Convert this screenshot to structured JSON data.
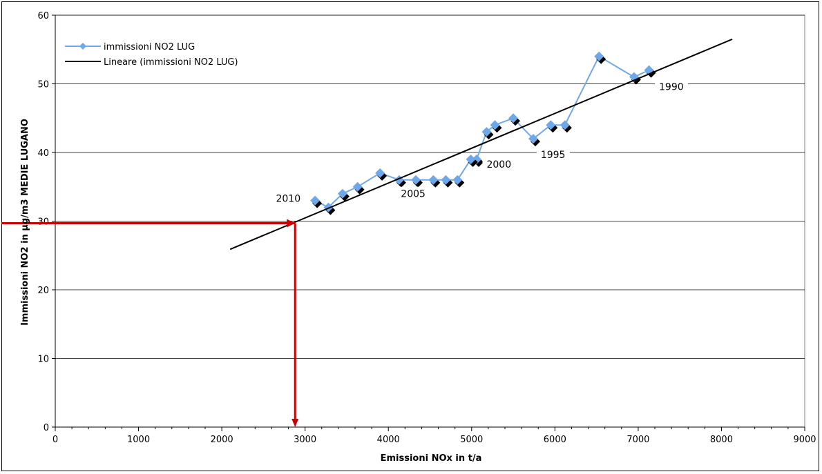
{
  "chart_data": {
    "type": "scatter",
    "xlabel": "Emissioni NOx in t/a",
    "ylabel": "Immissioni NO2 in µg/m3 MEDIE LUGANO",
    "xlim": [
      0,
      9000
    ],
    "ylim": [
      0,
      60
    ],
    "x_ticks": [
      "0",
      "1000",
      "2000",
      "3000",
      "4000",
      "5000",
      "6000",
      "7000",
      "8000",
      "9000"
    ],
    "y_ticks": [
      "0",
      "10",
      "20",
      "30",
      "40",
      "50",
      "60"
    ],
    "grid": "horizontal",
    "legend_position": "top-left",
    "series": [
      {
        "name": "immissioni NO2 LUG",
        "kind": "line-markers",
        "color": "#6fa8e8",
        "marker": "diamond",
        "points": [
          {
            "x": 7130,
            "y": 52
          },
          {
            "x": 6950,
            "y": 51
          },
          {
            "x": 6530,
            "y": 54
          },
          {
            "x": 6120,
            "y": 44
          },
          {
            "x": 5950,
            "y": 44
          },
          {
            "x": 5740,
            "y": 42
          },
          {
            "x": 5500,
            "y": 45
          },
          {
            "x": 5280,
            "y": 44
          },
          {
            "x": 5180,
            "y": 43
          },
          {
            "x": 5060,
            "y": 39
          },
          {
            "x": 4990,
            "y": 39
          },
          {
            "x": 4830,
            "y": 36
          },
          {
            "x": 4690,
            "y": 36
          },
          {
            "x": 4540,
            "y": 36
          },
          {
            "x": 4330,
            "y": 36
          },
          {
            "x": 4130,
            "y": 36
          },
          {
            "x": 3900,
            "y": 37
          },
          {
            "x": 3630,
            "y": 35
          },
          {
            "x": 3450,
            "y": 34
          },
          {
            "x": 3280,
            "y": 32
          },
          {
            "x": 3120,
            "y": 33
          }
        ]
      },
      {
        "name": "Lineare (immissioni NO2 LUG)",
        "kind": "trendline",
        "color": "#000000",
        "points": [
          {
            "x": 2100,
            "y": 25.9
          },
          {
            "x": 8130,
            "y": 56.5
          }
        ]
      }
    ],
    "annotations": [
      {
        "text": "1990",
        "x": 7250,
        "y": 49.2
      },
      {
        "text": "1995",
        "x": 5830,
        "y": 39.3
      },
      {
        "text": "2000",
        "x": 5180,
        "y": 37.9
      },
      {
        "text": "2005",
        "x": 4150,
        "y": 33.6
      },
      {
        "text": "2010",
        "x": 2650,
        "y": 32.9
      }
    ],
    "reference_arrows": {
      "color": "#cc0000",
      "horizontal": {
        "x_from": 0,
        "x_to": 2880,
        "y": 29.7
      },
      "vertical": {
        "x": 2880,
        "y_from": 29.7,
        "y_to": 0
      }
    }
  }
}
